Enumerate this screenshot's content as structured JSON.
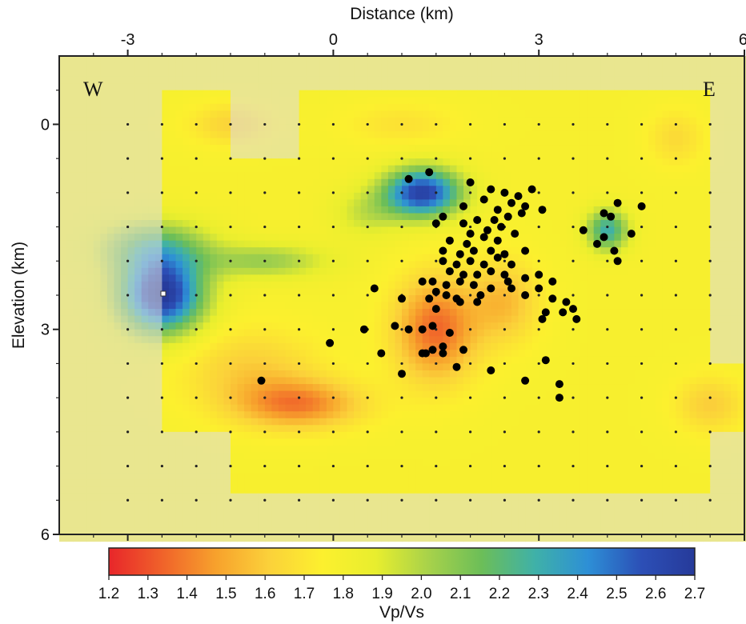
{
  "chart_data": {
    "type": "heatmap",
    "top_axis_title": "Distance (km)",
    "left_axis_title": "Elevation (km)",
    "x_ticks": [
      -3,
      0,
      3,
      6
    ],
    "y_ticks": [
      0,
      3,
      6
    ],
    "xlim": [
      -4,
      6
    ],
    "ylim": [
      -1.0,
      6.0
    ],
    "corner_labels": [
      "W",
      "E"
    ],
    "colorbar": {
      "label": "Vp/Vs",
      "min": 1.2,
      "max": 2.7,
      "ticks": [
        "1.2",
        "1.3",
        "1.4",
        "1.5",
        "1.6",
        "1.7",
        "1.8",
        "1.9",
        "2.0",
        "2.1",
        "2.2",
        "2.3",
        "2.4",
        "2.5",
        "2.6",
        "2.7"
      ],
      "colors": [
        "#e8262a",
        "#f0622a",
        "#f7a12c",
        "#fbd13a",
        "#fcf02e",
        "#e8ee2e",
        "#a8d24a",
        "#6cbe58",
        "#3fb1a8",
        "#2d8fd6",
        "#2c4fb6",
        "#263a9a"
      ]
    },
    "background_value": 1.78,
    "anomalies": [
      {
        "x": -2.5,
        "y": 2.5,
        "value": 2.7,
        "rx": 0.6,
        "ry": 0.55
      },
      {
        "x": 1.3,
        "y": 1.0,
        "value": 2.65,
        "rx": 0.55,
        "ry": 0.35
      },
      {
        "x": 4.0,
        "y": 1.55,
        "value": 2.3,
        "rx": 0.3,
        "ry": 0.3
      },
      {
        "x": 1.5,
        "y": 3.0,
        "value": 1.35,
        "rx": 0.6,
        "ry": 0.75
      },
      {
        "x": -0.5,
        "y": 4.1,
        "value": 1.42,
        "rx": 0.9,
        "ry": 0.35
      },
      {
        "x": -1.2,
        "y": 3.6,
        "value": 1.6,
        "rx": 1.0,
        "ry": 0.6
      },
      {
        "x": 2.5,
        "y": 2.6,
        "value": 1.55,
        "rx": 0.5,
        "ry": 0.6
      },
      {
        "x": -1.5,
        "y": 0.0,
        "value": 1.62,
        "rx": 0.6,
        "ry": 0.3
      },
      {
        "x": 1.0,
        "y": 0.0,
        "value": 1.68,
        "rx": 0.8,
        "ry": 0.3
      },
      {
        "x": 5.0,
        "y": 0.2,
        "value": 1.65,
        "rx": 0.4,
        "ry": 0.4
      },
      {
        "x": 5.5,
        "y": 4.1,
        "value": 1.6,
        "rx": 0.5,
        "ry": 0.4
      },
      {
        "x": -1.0,
        "y": 2.0,
        "value": 2.05,
        "rx": 0.9,
        "ry": 0.25
      },
      {
        "x": -2.6,
        "y": 1.8,
        "value": 2.15,
        "rx": 0.8,
        "ry": 0.4
      },
      {
        "x": 0.5,
        "y": 1.3,
        "value": 1.95,
        "rx": 0.5,
        "ry": 0.35
      }
    ],
    "events": [
      [
        1.1,
        0.8
      ],
      [
        1.4,
        0.7
      ],
      [
        2.0,
        0.85
      ],
      [
        2.3,
        0.95
      ],
      [
        2.5,
        1.0
      ],
      [
        2.7,
        1.05
      ],
      [
        2.9,
        0.95
      ],
      [
        2.6,
        1.15
      ],
      [
        2.2,
        1.1
      ],
      [
        1.9,
        1.2
      ],
      [
        2.4,
        1.25
      ],
      [
        2.8,
        1.2
      ],
      [
        1.6,
        1.35
      ],
      [
        1.9,
        1.45
      ],
      [
        2.1,
        1.4
      ],
      [
        2.35,
        1.4
      ],
      [
        2.55,
        1.35
      ],
      [
        2.75,
        1.3
      ],
      [
        3.05,
        1.25
      ],
      [
        1.5,
        1.45
      ],
      [
        2.0,
        1.6
      ],
      [
        2.25,
        1.55
      ],
      [
        2.45,
        1.5
      ],
      [
        1.7,
        1.7
      ],
      [
        1.95,
        1.75
      ],
      [
        2.2,
        1.65
      ],
      [
        2.4,
        1.7
      ],
      [
        2.65,
        1.6
      ],
      [
        1.6,
        1.85
      ],
      [
        1.85,
        1.9
      ],
      [
        2.05,
        1.85
      ],
      [
        2.3,
        1.85
      ],
      [
        2.5,
        1.9
      ],
      [
        2.8,
        1.85
      ],
      [
        1.6,
        2.0
      ],
      [
        1.8,
        2.05
      ],
      [
        2.0,
        2.0
      ],
      [
        2.2,
        2.05
      ],
      [
        2.4,
        1.95
      ],
      [
        2.6,
        2.05
      ],
      [
        1.7,
        2.15
      ],
      [
        1.9,
        2.2
      ],
      [
        2.1,
        2.2
      ],
      [
        2.3,
        2.15
      ],
      [
        2.5,
        2.2
      ],
      [
        1.45,
        2.3
      ],
      [
        1.65,
        2.35
      ],
      [
        1.85,
        2.3
      ],
      [
        2.05,
        2.35
      ],
      [
        2.3,
        2.4
      ],
      [
        2.55,
        2.3
      ],
      [
        2.8,
        2.25
      ],
      [
        3.0,
        2.2
      ],
      [
        3.2,
        2.3
      ],
      [
        1.3,
        2.3
      ],
      [
        1.5,
        2.45
      ],
      [
        1.8,
        2.55
      ],
      [
        2.15,
        2.5
      ],
      [
        2.1,
        2.6
      ],
      [
        1.85,
        2.6
      ],
      [
        1.65,
        2.5
      ],
      [
        2.6,
        2.4
      ],
      [
        2.8,
        2.5
      ],
      [
        3.0,
        2.4
      ],
      [
        3.2,
        2.55
      ],
      [
        3.4,
        2.6
      ],
      [
        3.5,
        2.7
      ],
      [
        3.55,
        2.85
      ],
      [
        3.65,
        1.55
      ],
      [
        3.95,
        1.3
      ],
      [
        4.05,
        1.35
      ],
      [
        4.15,
        1.15
      ],
      [
        4.5,
        1.2
      ],
      [
        3.85,
        1.75
      ],
      [
        3.95,
        1.65
      ],
      [
        4.1,
        1.85
      ],
      [
        4.15,
        2.0
      ],
      [
        4.35,
        1.6
      ],
      [
        3.35,
        2.75
      ],
      [
        0.6,
        2.4
      ],
      [
        1.0,
        2.55
      ],
      [
        1.4,
        2.55
      ],
      [
        1.5,
        2.7
      ],
      [
        1.45,
        2.95
      ],
      [
        1.3,
        3.0
      ],
      [
        1.7,
        3.05
      ],
      [
        1.6,
        3.25
      ],
      [
        1.3,
        3.35
      ],
      [
        1.35,
        3.35
      ],
      [
        1.45,
        3.3
      ],
      [
        1.6,
        3.35
      ],
      [
        1.9,
        3.3
      ],
      [
        1.8,
        3.55
      ],
      [
        0.7,
        3.35
      ],
      [
        0.9,
        2.95
      ],
      [
        1.1,
        3.0
      ],
      [
        1.0,
        3.65
      ],
      [
        2.3,
        3.6
      ],
      [
        2.8,
        3.75
      ],
      [
        3.05,
        2.85
      ],
      [
        3.1,
        2.75
      ],
      [
        3.1,
        3.45
      ],
      [
        3.3,
        3.8
      ],
      [
        3.3,
        4.0
      ],
      [
        -1.05,
        3.75
      ],
      [
        -0.05,
        3.2
      ],
      [
        0.45,
        3.0
      ]
    ]
  }
}
